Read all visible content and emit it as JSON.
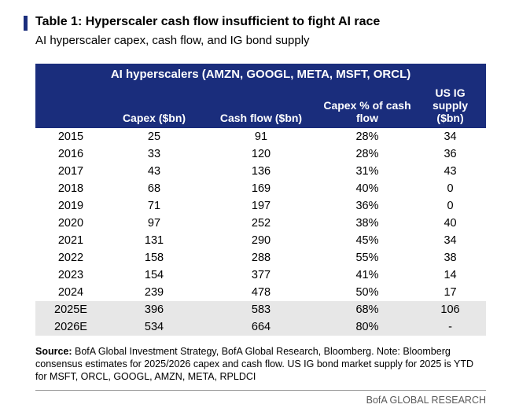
{
  "header": {
    "title": "Table 1: Hyperscaler cash flow insufficient to fight AI race",
    "subtitle": "AI hyperscaler capex, cash flow, and IG bond supply"
  },
  "chart_data": {
    "type": "table",
    "title": "AI hyperscalers (AMZN, GOOGL, META, MSFT, ORCL)",
    "columns": [
      "",
      "Capex ($bn)",
      "Cash flow ($bn)",
      "Capex % of cash flow",
      "US IG supply ($bn)"
    ],
    "rows": [
      {
        "cells": [
          "2015",
          "25",
          "91",
          "28%",
          "34"
        ],
        "highlight": false
      },
      {
        "cells": [
          "2016",
          "33",
          "120",
          "28%",
          "36"
        ],
        "highlight": false
      },
      {
        "cells": [
          "2017",
          "43",
          "136",
          "31%",
          "43"
        ],
        "highlight": false
      },
      {
        "cells": [
          "2018",
          "68",
          "169",
          "40%",
          "0"
        ],
        "highlight": false
      },
      {
        "cells": [
          "2019",
          "71",
          "197",
          "36%",
          "0"
        ],
        "highlight": false
      },
      {
        "cells": [
          "2020",
          "97",
          "252",
          "38%",
          "40"
        ],
        "highlight": false
      },
      {
        "cells": [
          "2021",
          "131",
          "290",
          "45%",
          "34"
        ],
        "highlight": false
      },
      {
        "cells": [
          "2022",
          "158",
          "288",
          "55%",
          "38"
        ],
        "highlight": false
      },
      {
        "cells": [
          "2023",
          "154",
          "377",
          "41%",
          "14"
        ],
        "highlight": false
      },
      {
        "cells": [
          "2024",
          "239",
          "478",
          "50%",
          "17"
        ],
        "highlight": false
      },
      {
        "cells": [
          "2025E",
          "396",
          "583",
          "68%",
          "106"
        ],
        "highlight": true
      },
      {
        "cells": [
          "2026E",
          "534",
          "664",
          "80%",
          "-"
        ],
        "highlight": true
      }
    ]
  },
  "source": {
    "label": "Source:",
    "text": " BofA Global Investment Strategy, BofA Global Research, Bloomberg. Note: Bloomberg consensus estimates for 2025/2026 capex and cash flow. US IG bond market supply for 2025 is YTD for MSFT, ORCL, GOOGL, AMZN, META, RPLDCI"
  },
  "footer": {
    "brand": "BofA GLOBAL RESEARCH"
  },
  "colors": {
    "navy": "#1a2d7c",
    "highlight_row": "#e7e7e7",
    "footer_gray": "#595959",
    "rule_gray": "#999999"
  }
}
